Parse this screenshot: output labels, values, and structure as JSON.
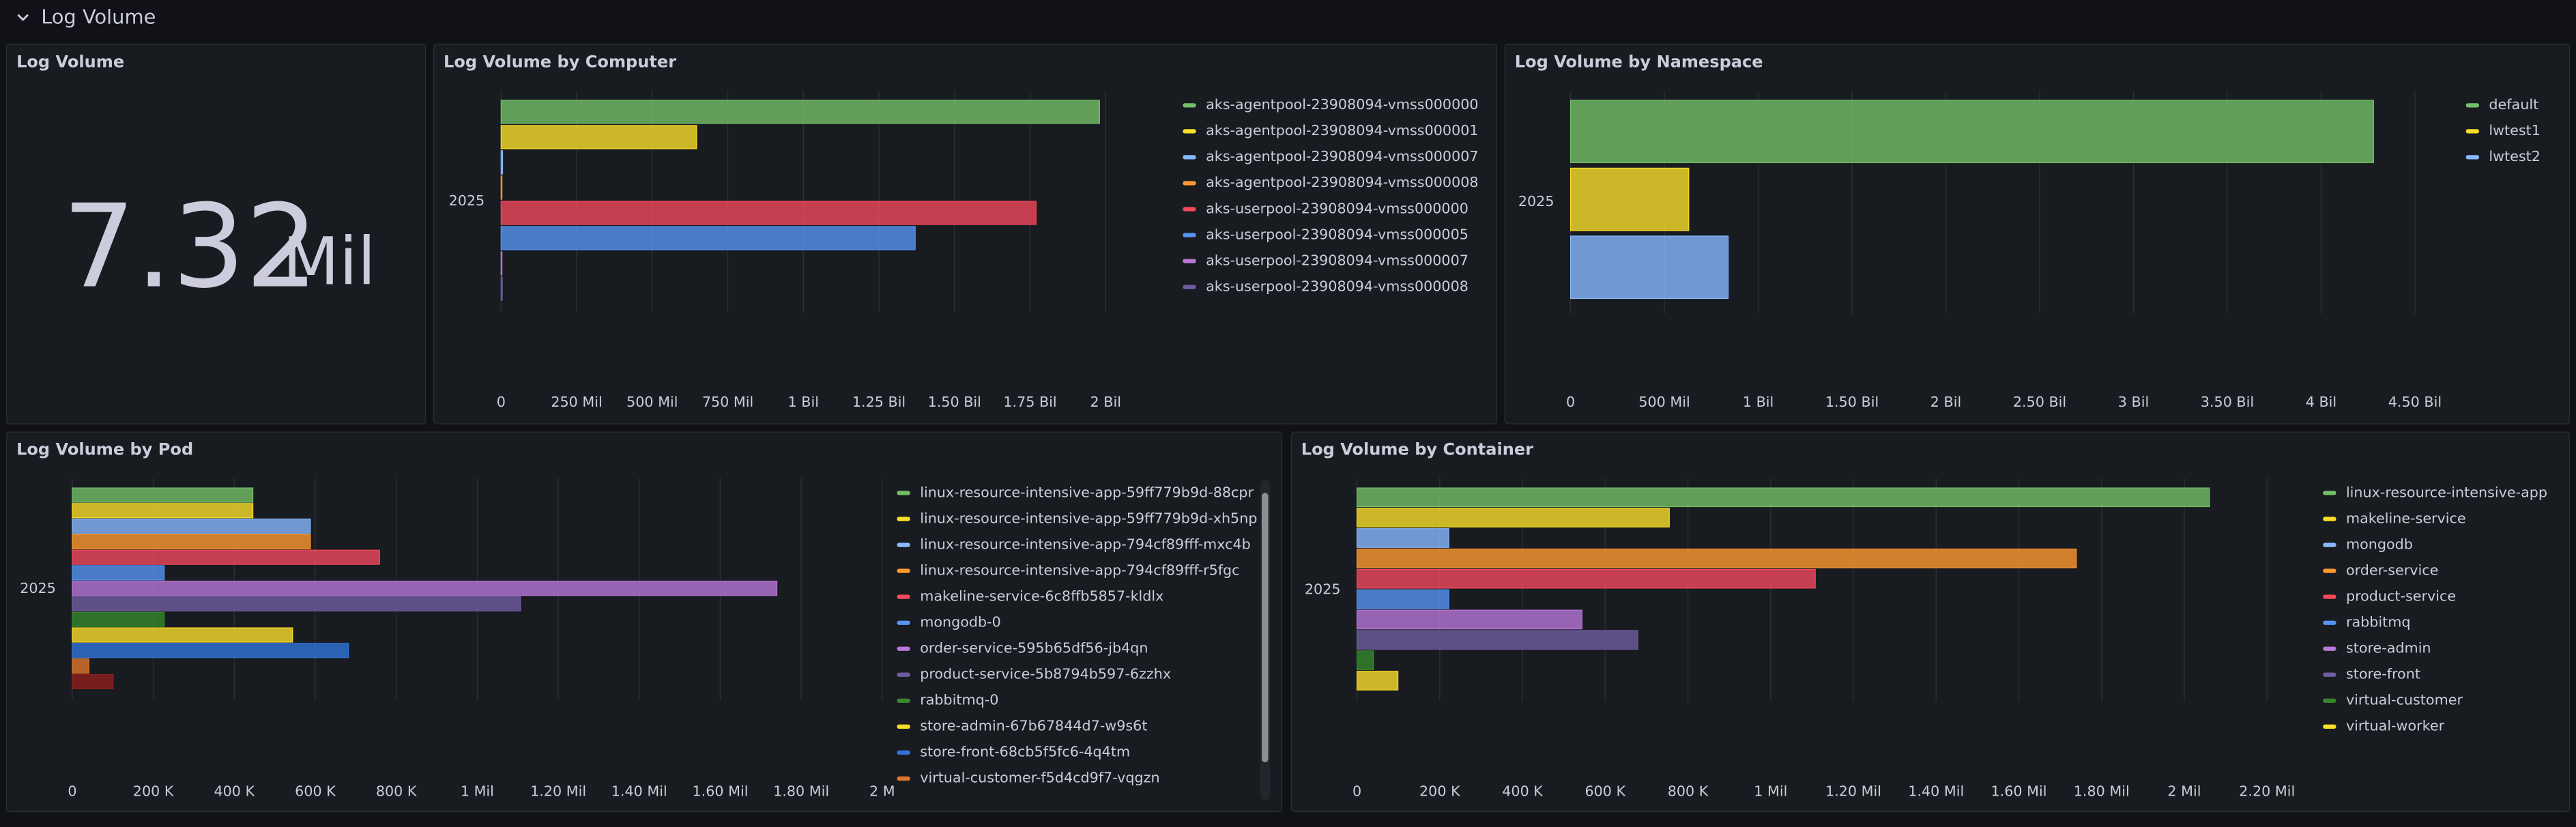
{
  "section_title": "Log Volume",
  "stat": {
    "title": "Log Volume",
    "value": 7.32,
    "unit": "Mil"
  },
  "chart_data": [
    {
      "type": "bar",
      "orientation": "horizontal",
      "title": "Log Volume by Computer",
      "categories": [
        "2025"
      ],
      "series": [
        {
          "name": "aks-agentpool-23908094-vmss000000",
          "color": "#73bf69",
          "values": [
            1980000000
          ]
        },
        {
          "name": "aks-agentpool-23908094-vmss000001",
          "color": "#fade2a",
          "values": [
            647000000
          ]
        },
        {
          "name": "aks-agentpool-23908094-vmss000007",
          "color": "#8ab8ff",
          "values": [
            5000000
          ]
        },
        {
          "name": "aks-agentpool-23908094-vmss000008",
          "color": "#ff9830",
          "values": [
            3000000
          ]
        },
        {
          "name": "aks-userpool-23908094-vmss000000",
          "color": "#f2495c",
          "values": [
            1770000000
          ]
        },
        {
          "name": "aks-userpool-23908094-vmss000005",
          "color": "#5794f2",
          "values": [
            1370000000
          ]
        },
        {
          "name": "aks-userpool-23908094-vmss000007",
          "color": "#b877d9",
          "values": [
            3000000
          ]
        },
        {
          "name": "aks-userpool-23908094-vmss000008",
          "color": "#705da0",
          "values": [
            4000000
          ]
        }
      ],
      "xlim": [
        0,
        2100000000
      ],
      "xticks": [
        0,
        {
          "value": 250000000,
          "label": "250 Mil"
        },
        {
          "value": 500000000,
          "label": "500 Mil"
        },
        {
          "value": 750000000,
          "label": "750 Mil"
        },
        {
          "value": 1000000000,
          "label": "1 Bil"
        },
        {
          "value": 1250000000,
          "label": "1.25 Bil"
        },
        {
          "value": 1500000000,
          "label": "1.50 Bil"
        },
        {
          "value": 1750000000,
          "label": "1.75 Bil"
        },
        {
          "value": 2000000000,
          "label": "2 Bil"
        }
      ],
      "grid": true
    },
    {
      "type": "bar",
      "orientation": "horizontal",
      "title": "Log Volume by Namespace",
      "categories": [
        "2025"
      ],
      "series": [
        {
          "name": "default",
          "color": "#73bf69",
          "values": [
            4280000000
          ]
        },
        {
          "name": "lwtest1",
          "color": "#fade2a",
          "values": [
            630000000
          ]
        },
        {
          "name": "lwtest2",
          "color": "#8ab8ff",
          "values": [
            840000000
          ]
        }
      ],
      "xlim": [
        0,
        4750000000
      ],
      "xticks": [
        0,
        {
          "value": 500000000,
          "label": "500 Mil"
        },
        {
          "value": 1000000000,
          "label": "1 Bil"
        },
        {
          "value": 1500000000,
          "label": "1.50 Bil"
        },
        {
          "value": 2000000000,
          "label": "2 Bil"
        },
        {
          "value": 2500000000,
          "label": "2.50 Bil"
        },
        {
          "value": 3000000000,
          "label": "3 Bil"
        },
        {
          "value": 3500000000,
          "label": "3.50 Bil"
        },
        {
          "value": 4000000000,
          "label": "4 Bil"
        },
        {
          "value": 4500000000,
          "label": "4.50 Bil"
        }
      ],
      "grid": true
    },
    {
      "type": "bar",
      "orientation": "horizontal",
      "title": "Log Volume by Pod",
      "categories": [
        "2025"
      ],
      "series": [
        {
          "name": "linux-resource-intensive-app-59ff779b9d-88cpr",
          "color": "#73bf69",
          "values": [
            446000
          ]
        },
        {
          "name": "linux-resource-intensive-app-59ff779b9d-xh5np",
          "color": "#fade2a",
          "values": [
            446000
          ]
        },
        {
          "name": "linux-resource-intensive-app-794cf89fff-mxc4b",
          "color": "#8ab8ff",
          "values": [
            588000
          ]
        },
        {
          "name": "linux-resource-intensive-app-794cf89fff-r5fgc",
          "color": "#ff9830",
          "values": [
            588000
          ]
        },
        {
          "name": "makeline-service-6c8ffb5857-kldlx",
          "color": "#f2495c",
          "values": [
            759000
          ]
        },
        {
          "name": "mongodb-0",
          "color": "#5794f2",
          "values": [
            227000
          ]
        },
        {
          "name": "order-service-595b65df56-jb4qn",
          "color": "#b877d9",
          "values": [
            1740000
          ]
        },
        {
          "name": "product-service-5b8794b597-6zzhx",
          "color": "#705da0",
          "values": [
            1107000
          ]
        },
        {
          "name": "rabbitmq-0",
          "color": "#37872d",
          "values": [
            227000
          ]
        },
        {
          "name": "store-admin-67b67844d7-w9s6t",
          "color": "#fade2a",
          "values": [
            544000
          ]
        },
        {
          "name": "store-front-68cb5f5fc6-4q4tm",
          "color": "#3274d9",
          "values": [
            682000
          ]
        },
        {
          "name": "virtual-customer-f5d4cd9f7-vqgzn",
          "color": "#e0752d",
          "values": [
            41000
          ]
        },
        {
          "name": null,
          "color": "#8f1e1e",
          "values": [
            101000
          ]
        }
      ],
      "xlim": [
        0,
        2000000
      ],
      "xticks": [
        0,
        {
          "value": 200000,
          "label": "200 K"
        },
        {
          "value": 400000,
          "label": "400 K"
        },
        {
          "value": 600000,
          "label": "600 K"
        },
        {
          "value": 800000,
          "label": "800 K"
        },
        {
          "value": 1000000,
          "label": "1 Mil"
        },
        {
          "value": 1200000,
          "label": "1.20 Mil"
        },
        {
          "value": 1400000,
          "label": "1.40 Mil"
        },
        {
          "value": 1600000,
          "label": "1.60 Mil"
        },
        {
          "value": 1800000,
          "label": "1.80 Mil"
        },
        {
          "value": 2000000,
          "label": "2 M"
        }
      ],
      "grid": true
    },
    {
      "type": "bar",
      "orientation": "horizontal",
      "title": "Log Volume by Container",
      "categories": [
        "2025"
      ],
      "series": [
        {
          "name": "linux-resource-intensive-app",
          "color": "#73bf69",
          "values": [
            2061000
          ]
        },
        {
          "name": "makeline-service",
          "color": "#fade2a",
          "values": [
            755000
          ]
        },
        {
          "name": "mongodb",
          "color": "#8ab8ff",
          "values": [
            222000
          ]
        },
        {
          "name": "order-service",
          "color": "#ff9830",
          "values": [
            1739000
          ]
        },
        {
          "name": "product-service",
          "color": "#f2495c",
          "values": [
            1108000
          ]
        },
        {
          "name": "rabbitmq",
          "color": "#5794f2",
          "values": [
            222000
          ]
        },
        {
          "name": "store-admin",
          "color": "#b877d9",
          "values": [
            544000
          ]
        },
        {
          "name": "store-front",
          "color": "#705da0",
          "values": [
            679000
          ]
        },
        {
          "name": "virtual-customer",
          "color": "#37872d",
          "values": [
            40000
          ]
        },
        {
          "name": "virtual-worker",
          "color": "#fade2a",
          "values": [
            99000
          ]
        }
      ],
      "xlim": [
        0,
        2300000
      ],
      "xticks": [
        0,
        {
          "value": 200000,
          "label": "200 K"
        },
        {
          "value": 400000,
          "label": "400 K"
        },
        {
          "value": 600000,
          "label": "600 K"
        },
        {
          "value": 800000,
          "label": "800 K"
        },
        {
          "value": 1000000,
          "label": "1 Mil"
        },
        {
          "value": 1200000,
          "label": "1.20 Mil"
        },
        {
          "value": 1400000,
          "label": "1.40 Mil"
        },
        {
          "value": 1600000,
          "label": "1.60 Mil"
        },
        {
          "value": 1800000,
          "label": "1.80 Mil"
        },
        {
          "value": 2000000,
          "label": "2 Mil"
        },
        {
          "value": 2200000,
          "label": "2.20 Mil"
        }
      ],
      "grid": true
    }
  ]
}
